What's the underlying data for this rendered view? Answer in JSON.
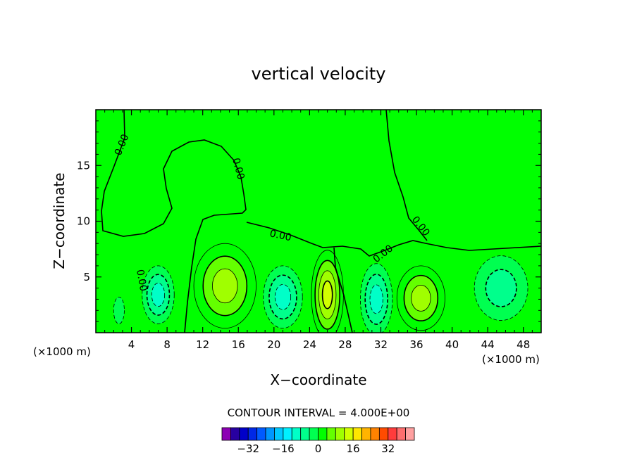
{
  "chart_data": {
    "type": "heatmap",
    "title": "vertical velocity",
    "xlabel": "X−coordinate",
    "ylabel": "Z−coordinate",
    "x_unit_left": "(×1000 m)",
    "x_unit_right": "(×1000 m)",
    "xlim": [
      0,
      50
    ],
    "ylim": [
      0,
      20
    ],
    "xticks": [
      4,
      8,
      12,
      16,
      20,
      24,
      28,
      32,
      36,
      40,
      44,
      48
    ],
    "xtick_labels": [
      "4",
      "8",
      "12",
      "16",
      "20",
      "24",
      "28",
      "32",
      "36",
      "40",
      "44",
      "48"
    ],
    "yticks": [
      5,
      10,
      15
    ],
    "ytick_labels": [
      "5",
      "10",
      "15"
    ],
    "contour_interval_text": "CONTOUR INTERVAL = 4.000E+00",
    "contour_interval": 4,
    "contour_label": "0.00",
    "background_value": 0,
    "cells": [
      {
        "xc": 2.6,
        "zc": 2.0,
        "rx": 0.6,
        "rz": 1.2,
        "w": -4
      },
      {
        "xc": 7.0,
        "zc": 3.4,
        "rx": 1.8,
        "rz": 2.6,
        "w": -12
      },
      {
        "xc": 14.5,
        "zc": 4.2,
        "rx": 3.5,
        "rz": 3.8,
        "w": 12
      },
      {
        "xc": 21.0,
        "zc": 3.2,
        "rx": 2.2,
        "rz": 2.8,
        "w": -10
      },
      {
        "xc": 26.0,
        "zc": 3.4,
        "rx": 1.8,
        "rz": 4.0,
        "w": 16
      },
      {
        "xc": 31.5,
        "zc": 3.0,
        "rx": 1.8,
        "rz": 3.2,
        "w": -12
      },
      {
        "xc": 36.5,
        "zc": 3.1,
        "rx": 2.7,
        "rz": 2.9,
        "w": 12
      },
      {
        "xc": 45.5,
        "zc": 4.0,
        "rx": 3.0,
        "rz": 2.9,
        "w": -8
      }
    ],
    "colorbar": {
      "colors": [
        "#8c00b4",
        "#2800a0",
        "#0000c8",
        "#0028e6",
        "#005aff",
        "#0096ff",
        "#00c8ff",
        "#00f0ff",
        "#00ffc8",
        "#00ff8c",
        "#00ff50",
        "#00ff00",
        "#64ff00",
        "#a0ff00",
        "#d2ff00",
        "#ffe600",
        "#ffb400",
        "#ff8200",
        "#ff4b00",
        "#ff3c3c",
        "#ff6e6e",
        "#ffa0a0"
      ],
      "tick_values": [
        -32,
        -16,
        0,
        16,
        32
      ],
      "tick_labels": [
        "−32",
        "−16",
        "0",
        "16",
        "32"
      ],
      "min": -44,
      "max": 44
    }
  }
}
